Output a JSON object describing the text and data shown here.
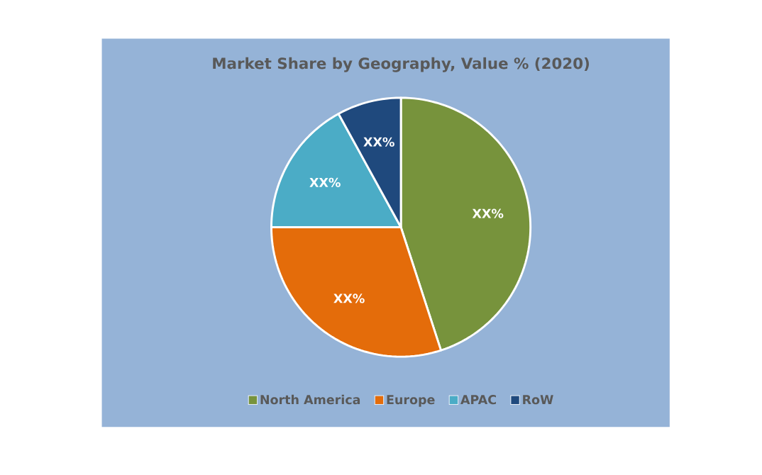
{
  "chart_data": {
    "type": "pie",
    "title": "Market Share by Geography, Value % (2020)",
    "categories": [
      "North America",
      "Europe",
      "APAC",
      "RoW"
    ],
    "values": [
      45,
      30,
      17,
      8
    ],
    "colors": [
      "#77933c",
      "#e46c0a",
      "#4bacc6",
      "#1f497d"
    ],
    "value_labels": [
      "XX%",
      "XX%",
      "XX%",
      "XX%"
    ],
    "legend": "bottom"
  }
}
